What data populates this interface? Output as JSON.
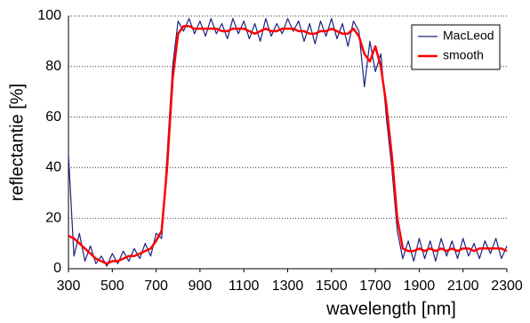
{
  "chart_data": {
    "type": "line",
    "xlabel": "wavelength [nm]",
    "ylabel": "reflectantie [%]",
    "x": [
      300,
      325,
      350,
      375,
      400,
      425,
      450,
      475,
      500,
      525,
      550,
      575,
      600,
      625,
      650,
      675,
      700,
      725,
      750,
      775,
      800,
      825,
      850,
      875,
      900,
      925,
      950,
      975,
      1000,
      1025,
      1050,
      1075,
      1100,
      1125,
      1150,
      1175,
      1200,
      1225,
      1250,
      1275,
      1300,
      1325,
      1350,
      1375,
      1400,
      1425,
      1450,
      1475,
      1500,
      1525,
      1550,
      1575,
      1600,
      1625,
      1650,
      1675,
      1700,
      1725,
      1750,
      1775,
      1800,
      1825,
      1850,
      1875,
      1900,
      1925,
      1950,
      1975,
      2000,
      2025,
      2050,
      2075,
      2100,
      2125,
      2150,
      2175,
      2200,
      2225,
      2250,
      2275,
      2300
    ],
    "series": [
      {
        "name": "MacLeod",
        "color": "#1a237e",
        "values": [
          45,
          5,
          14,
          3,
          9,
          2,
          5,
          1,
          6,
          2,
          7,
          3,
          8,
          4,
          10,
          5,
          14,
          12,
          45,
          80,
          98,
          94,
          99,
          93,
          98,
          92,
          99,
          93,
          97,
          91,
          99,
          93,
          98,
          91,
          97,
          90,
          99,
          92,
          97,
          93,
          99,
          94,
          98,
          90,
          97,
          89,
          98,
          92,
          99,
          91,
          97,
          88,
          98,
          94,
          72,
          90,
          78,
          85,
          60,
          40,
          15,
          4,
          11,
          3,
          12,
          4,
          11,
          3,
          12,
          5,
          11,
          4,
          12,
          5,
          10,
          4,
          11,
          6,
          12,
          4,
          9
        ]
      },
      {
        "name": "smooth",
        "color": "#ff0000",
        "values": [
          13,
          12,
          10,
          8,
          6,
          4,
          3,
          2,
          3,
          3,
          4,
          5,
          5,
          6,
          7,
          8,
          11,
          15,
          40,
          75,
          93,
          96,
          96,
          95,
          95,
          95,
          95,
          95,
          94,
          94,
          95,
          95,
          95,
          94,
          93,
          94,
          95,
          94,
          94,
          95,
          95,
          95,
          94,
          94,
          93,
          93,
          94,
          94,
          95,
          94,
          93,
          93,
          95,
          92,
          85,
          82,
          88,
          80,
          65,
          45,
          20,
          8,
          7,
          7,
          8,
          7,
          8,
          7,
          8,
          7,
          8,
          7,
          8,
          8,
          7,
          8,
          8,
          8,
          8,
          8,
          7
        ]
      }
    ],
    "xlim": [
      300,
      2300
    ],
    "ylim": [
      0,
      100
    ],
    "xticks": [
      300,
      500,
      700,
      900,
      1100,
      1300,
      1500,
      1700,
      1900,
      2100,
      2300
    ],
    "yticks": [
      0,
      20,
      40,
      60,
      80,
      100
    ],
    "grid": true,
    "legend": "upper right"
  }
}
